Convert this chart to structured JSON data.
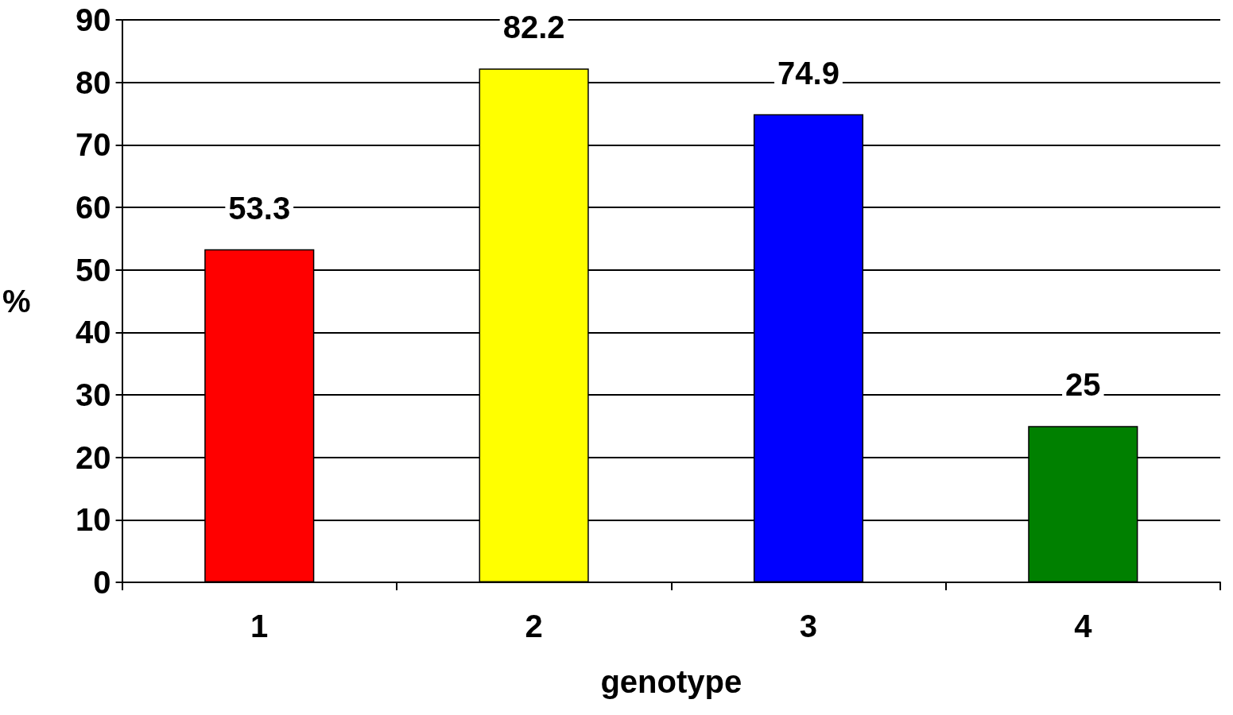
{
  "chart_data": {
    "type": "bar",
    "xlabel": "genotype",
    "ylabel": "%",
    "categories": [
      "1",
      "2",
      "3",
      "4"
    ],
    "values": [
      53.3,
      82.2,
      74.9,
      25
    ],
    "colors": [
      "#ff0000",
      "#ffff00",
      "#0000ff",
      "#008000"
    ],
    "ylim": [
      0,
      90
    ],
    "yticks": [
      0,
      10,
      20,
      30,
      40,
      50,
      60,
      70,
      80,
      90
    ],
    "grid": "y",
    "data_labels": true
  }
}
